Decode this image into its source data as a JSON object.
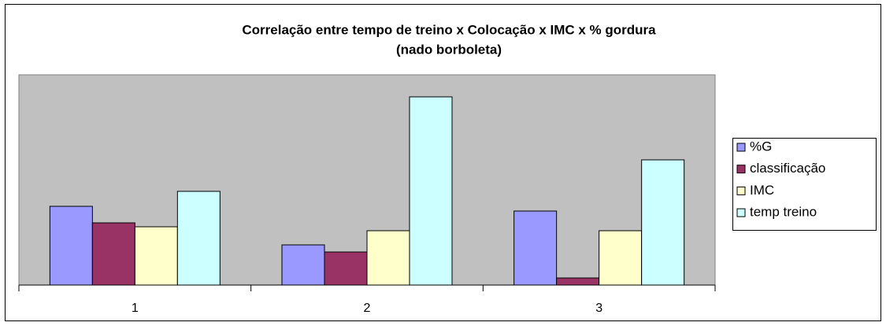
{
  "chart_data": {
    "type": "bar",
    "title": [
      "Correlação entre tempo de treino x Colocação x IMC x % gordura",
      "(nado borboleta)"
    ],
    "categories": [
      "1",
      "2",
      "3"
    ],
    "series": [
      {
        "name": "%G",
        "color": "#9999ff",
        "values": [
          100,
          51,
          94
        ]
      },
      {
        "name": "classificação",
        "color": "#993366",
        "values": [
          79,
          42,
          9
        ]
      },
      {
        "name": "IMC",
        "color": "#ffffcc",
        "values": [
          74,
          69,
          69
        ]
      },
      {
        "name": "temp treino",
        "color": "#ccffff",
        "values": [
          119,
          239,
          159
        ]
      }
    ],
    "ylim": [
      0,
      267
    ],
    "legend": "right"
  }
}
